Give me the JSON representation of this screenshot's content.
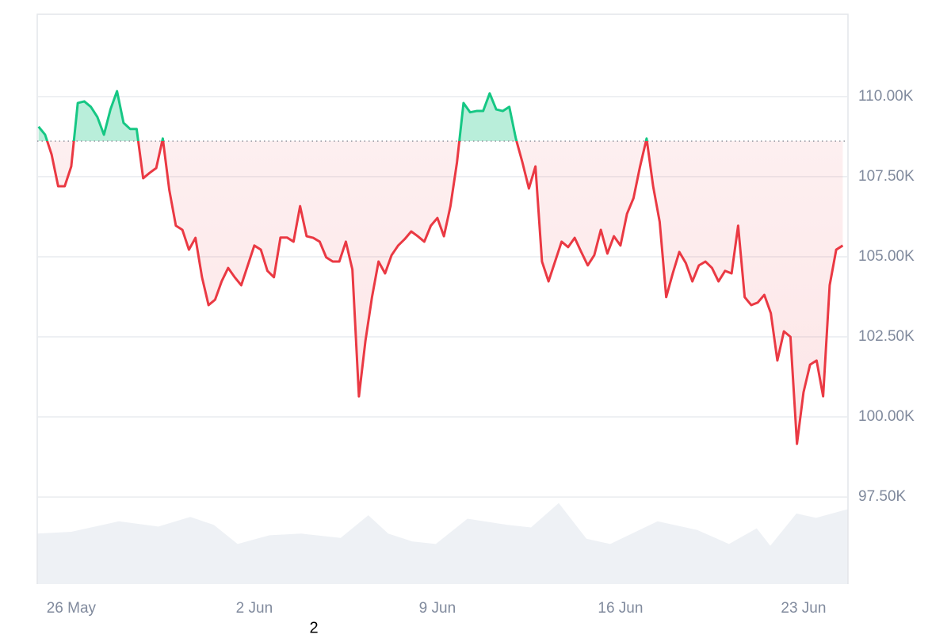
{
  "chart_data": {
    "type": "line",
    "x": [
      -1.25,
      -1,
      -0.75,
      -0.5,
      -0.25,
      0,
      0.25,
      0.5,
      0.75,
      1,
      1.25,
      1.5,
      1.75,
      2,
      2.25,
      2.5,
      2.75,
      3,
      3.25,
      3.5,
      3.75,
      4,
      4.25,
      4.5,
      4.75,
      5,
      5.25,
      5.5,
      5.75,
      6,
      6.25,
      6.5,
      6.75,
      7,
      7.25,
      7.5,
      7.75,
      8,
      8.25,
      8.5,
      8.75,
      9,
      9.25,
      9.5,
      9.75,
      10,
      10.25,
      10.5,
      10.75,
      11,
      11.25,
      11.5,
      11.75,
      12,
      12.25,
      12.5,
      12.75,
      13,
      13.25,
      13.5,
      13.75,
      14,
      14.25,
      14.5,
      14.75,
      15,
      15.25,
      15.5,
      15.75,
      16,
      16.25,
      16.5,
      16.75,
      17,
      17.25,
      17.5,
      17.75,
      18,
      18.25,
      18.5,
      18.75,
      19,
      19.25,
      19.5,
      19.75,
      20,
      20.25,
      20.5,
      20.75,
      21,
      21.25,
      21.5,
      21.75,
      22,
      22.25,
      22.5,
      22.75,
      23,
      23.25,
      23.5,
      23.75,
      24,
      24.25,
      24.5,
      24.75,
      25,
      25.25,
      25.5,
      25.75,
      26,
      26.25,
      26.5,
      26.75,
      27,
      27.25,
      27.5,
      27.75,
      28,
      28.25,
      28.5,
      28.75,
      29,
      29.25,
      29.5
    ],
    "values": [
      109060,
      108810,
      108190,
      107200,
      107200,
      107820,
      109800,
      109850,
      109680,
      109360,
      108810,
      109600,
      110170,
      109180,
      108990,
      108990,
      107450,
      107620,
      107770,
      108690,
      107080,
      105970,
      105840,
      105220,
      105590,
      104360,
      103490,
      103660,
      104230,
      104650,
      104360,
      104110,
      104730,
      105350,
      105220,
      104560,
      104360,
      105600,
      105600,
      105470,
      106580,
      105640,
      105590,
      105470,
      104980,
      104850,
      104850,
      105470,
      104600,
      100640,
      102380,
      103740,
      104850,
      104480,
      105050,
      105350,
      105550,
      105790,
      105640,
      105470,
      105970,
      106210,
      105640,
      106580,
      107950,
      109800,
      109510,
      109550,
      109550,
      110100,
      109600,
      109550,
      109680,
      108690,
      107950,
      107130,
      107820,
      104850,
      104230,
      104850,
      105470,
      105300,
      105590,
      105150,
      104730,
      105050,
      105840,
      105100,
      105640,
      105350,
      106340,
      106830,
      107820,
      108690,
      107200,
      106090,
      103740,
      104480,
      105150,
      104800,
      104230,
      104730,
      104850,
      104650,
      104230,
      104560,
      104480,
      105970,
      103740,
      103490,
      103570,
      103810,
      103240,
      101760,
      102670,
      102500,
      99160,
      100770,
      101630,
      101760,
      100640,
      104110,
      105220,
      105350
    ],
    "baseline": 108610,
    "color_up": "#16c784",
    "color_down": "#ea3943",
    "xlim": [
      -1.3,
      29.7
    ],
    "xticks": [
      {
        "value": 0,
        "label": "26 May"
      },
      {
        "value": 7,
        "label": "2 Jun"
      },
      {
        "value": 14,
        "label": "9 Jun"
      },
      {
        "value": 21,
        "label": "16 Jun"
      },
      {
        "value": 28,
        "label": "23 Jun"
      }
    ],
    "ylim": [
      94780,
      112570
    ],
    "yticks": [
      {
        "value": 97500,
        "label": "97.50K"
      },
      {
        "value": 100000,
        "label": "100.00K"
      },
      {
        "value": 102500,
        "label": "102.50K"
      },
      {
        "value": 105000,
        "label": "105.00K"
      },
      {
        "value": 107500,
        "label": "107.50K"
      },
      {
        "value": 110000,
        "label": "110.00K"
      }
    ],
    "grid": true,
    "volume": {
      "x": [
        -1.3,
        0,
        1.82,
        3.33,
        4.55,
        5.45,
        6.36,
        7.58,
        8.79,
        10.3,
        11.36,
        12.12,
        13.03,
        13.94,
        15.15,
        16.67,
        17.58,
        18.64,
        19.7,
        20.61,
        22.42,
        23.94,
        25.15,
        26.21,
        26.73,
        27.73,
        28.48,
        29.7
      ],
      "values": [
        58,
        60,
        72,
        66,
        77,
        68,
        46,
        56,
        58,
        53,
        79,
        58,
        49,
        46,
        75,
        68,
        65,
        93,
        52,
        46,
        72,
        62,
        46,
        64,
        44,
        81,
        76,
        86
      ],
      "color": "#eef1f5"
    },
    "y2lim": [
      0,
      100
    ],
    "annotation": "2"
  }
}
